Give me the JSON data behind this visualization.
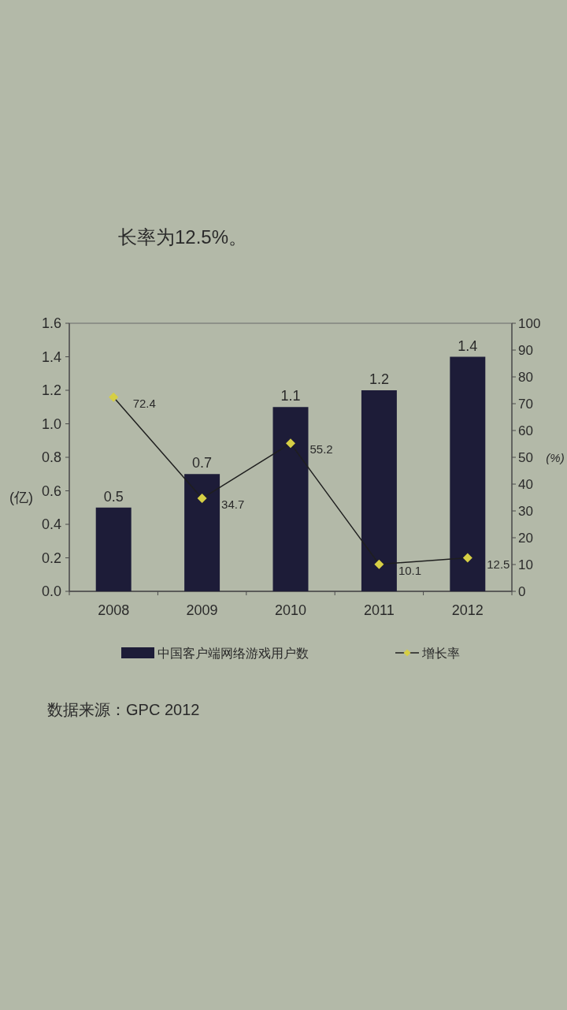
{
  "chart_data": {
    "type": "bar",
    "categories": [
      "2008",
      "2009",
      "2010",
      "2011",
      "2012"
    ],
    "ylabel": "(亿)",
    "y2label": "(%)",
    "series": [
      {
        "name": "中国客户端网络游戏用户数",
        "color": "#1d1c38",
        "values": [
          0.5,
          0.7,
          1.1,
          1.2,
          1.4
        ]
      },
      {
        "name": "增长率",
        "type": "line",
        "axis": "y2",
        "color": "#1f1f1f",
        "values": [
          72.4,
          34.7,
          55.2,
          10.1,
          12.5
        ]
      }
    ],
    "ylim": [
      0,
      1.6
    ],
    "yticks": [
      {
        "value": 0,
        "label": "0.0"
      },
      0.2,
      0.4,
      0.6,
      0.8,
      {
        "value": 1,
        "label": "1.0"
      },
      1.2,
      1.4,
      1.6
    ],
    "y2lim": [
      0,
      100
    ],
    "y2ticks": [
      0,
      10,
      20,
      30,
      40,
      50,
      60,
      70,
      80,
      90,
      100
    ],
    "marker": "diamond",
    "legend": "bottom",
    "data_labels": true,
    "annotations": [
      "长率为12.5%。",
      "数据来源：GPC 2012"
    ]
  }
}
